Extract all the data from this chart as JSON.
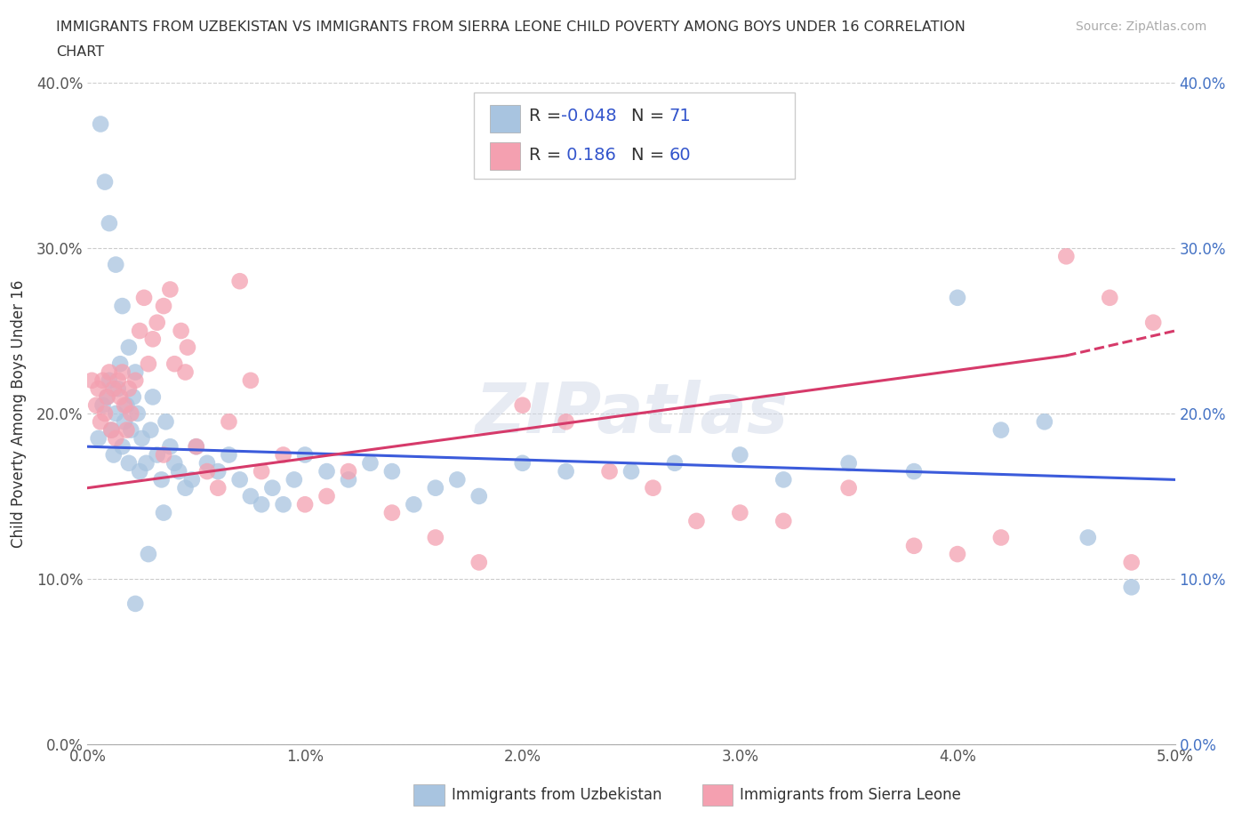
{
  "title_line1": "IMMIGRANTS FROM UZBEKISTAN VS IMMIGRANTS FROM SIERRA LEONE CHILD POVERTY AMONG BOYS UNDER 16 CORRELATION",
  "title_line2": "CHART",
  "source_text": "Source: ZipAtlas.com",
  "ylabel": "Child Poverty Among Boys Under 16",
  "xlabel_ticks": [
    "0.0%",
    "1.0%",
    "2.0%",
    "3.0%",
    "4.0%",
    "5.0%"
  ],
  "ylabel_ticks": [
    "0.0%",
    "10.0%",
    "20.0%",
    "30.0%",
    "40.0%"
  ],
  "xlim": [
    0.0,
    5.0
  ],
  "ylim": [
    0.0,
    40.0
  ],
  "uzbekistan_color": "#a8c4e0",
  "sierra_leone_color": "#f4a0b0",
  "uzbekistan_R": -0.048,
  "uzbekistan_N": 71,
  "sierra_leone_R": 0.186,
  "sierra_leone_N": 60,
  "uzbekistan_line_color": "#3b5bdb",
  "sierra_leone_line_color": "#d63a6a",
  "legend_label_uz": "Immigrants from Uzbekistan",
  "legend_label_sl": "Immigrants from Sierra Leone",
  "watermark": "ZIPatlas",
  "uzbekistan_x": [
    0.05,
    0.07,
    0.09,
    0.1,
    0.11,
    0.12,
    0.13,
    0.14,
    0.15,
    0.16,
    0.17,
    0.18,
    0.19,
    0.2,
    0.21,
    0.22,
    0.23,
    0.24,
    0.25,
    0.27,
    0.29,
    0.3,
    0.32,
    0.34,
    0.36,
    0.38,
    0.4,
    0.42,
    0.45,
    0.48,
    0.5,
    0.55,
    0.6,
    0.65,
    0.7,
    0.75,
    0.8,
    0.85,
    0.9,
    0.95,
    1.0,
    1.1,
    1.2,
    1.3,
    1.4,
    1.5,
    1.6,
    1.7,
    1.8,
    2.0,
    2.2,
    2.5,
    2.7,
    3.0,
    3.2,
    3.5,
    3.8,
    4.0,
    4.2,
    4.4,
    4.6,
    4.8,
    0.06,
    0.08,
    0.1,
    0.13,
    0.16,
    0.19,
    0.22,
    0.28,
    0.35
  ],
  "uzbekistan_y": [
    18.5,
    20.5,
    21.0,
    22.0,
    19.0,
    17.5,
    20.0,
    21.5,
    23.0,
    18.0,
    19.5,
    20.5,
    17.0,
    19.0,
    21.0,
    22.5,
    20.0,
    16.5,
    18.5,
    17.0,
    19.0,
    21.0,
    17.5,
    16.0,
    19.5,
    18.0,
    17.0,
    16.5,
    15.5,
    16.0,
    18.0,
    17.0,
    16.5,
    17.5,
    16.0,
    15.0,
    14.5,
    15.5,
    14.5,
    16.0,
    17.5,
    16.5,
    16.0,
    17.0,
    16.5,
    14.5,
    15.5,
    16.0,
    15.0,
    17.0,
    16.5,
    16.5,
    17.0,
    17.5,
    16.0,
    17.0,
    16.5,
    27.0,
    19.0,
    19.5,
    12.5,
    9.5,
    37.5,
    34.0,
    31.5,
    29.0,
    26.5,
    24.0,
    8.5,
    11.5,
    14.0
  ],
  "sierra_leone_x": [
    0.02,
    0.04,
    0.05,
    0.06,
    0.07,
    0.08,
    0.09,
    0.1,
    0.11,
    0.12,
    0.13,
    0.14,
    0.15,
    0.16,
    0.17,
    0.18,
    0.19,
    0.2,
    0.22,
    0.24,
    0.26,
    0.28,
    0.3,
    0.32,
    0.35,
    0.38,
    0.4,
    0.43,
    0.46,
    0.5,
    0.55,
    0.6,
    0.65,
    0.7,
    0.75,
    0.8,
    0.9,
    1.0,
    1.1,
    1.2,
    1.4,
    1.6,
    1.8,
    2.0,
    2.2,
    2.4,
    2.6,
    2.8,
    3.0,
    3.5,
    3.8,
    4.0,
    4.2,
    4.5,
    4.8,
    3.2,
    4.7,
    4.9,
    0.35,
    0.45
  ],
  "sierra_leone_y": [
    22.0,
    20.5,
    21.5,
    19.5,
    22.0,
    20.0,
    21.0,
    22.5,
    19.0,
    21.5,
    18.5,
    22.0,
    21.0,
    22.5,
    20.5,
    19.0,
    21.5,
    20.0,
    22.0,
    25.0,
    27.0,
    23.0,
    24.5,
    25.5,
    26.5,
    27.5,
    23.0,
    25.0,
    24.0,
    18.0,
    16.5,
    15.5,
    19.5,
    28.0,
    22.0,
    16.5,
    17.5,
    14.5,
    15.0,
    16.5,
    14.0,
    12.5,
    11.0,
    20.5,
    19.5,
    16.5,
    15.5,
    13.5,
    14.0,
    15.5,
    12.0,
    11.5,
    12.5,
    29.5,
    11.0,
    13.5,
    27.0,
    25.5,
    17.5,
    22.5
  ]
}
